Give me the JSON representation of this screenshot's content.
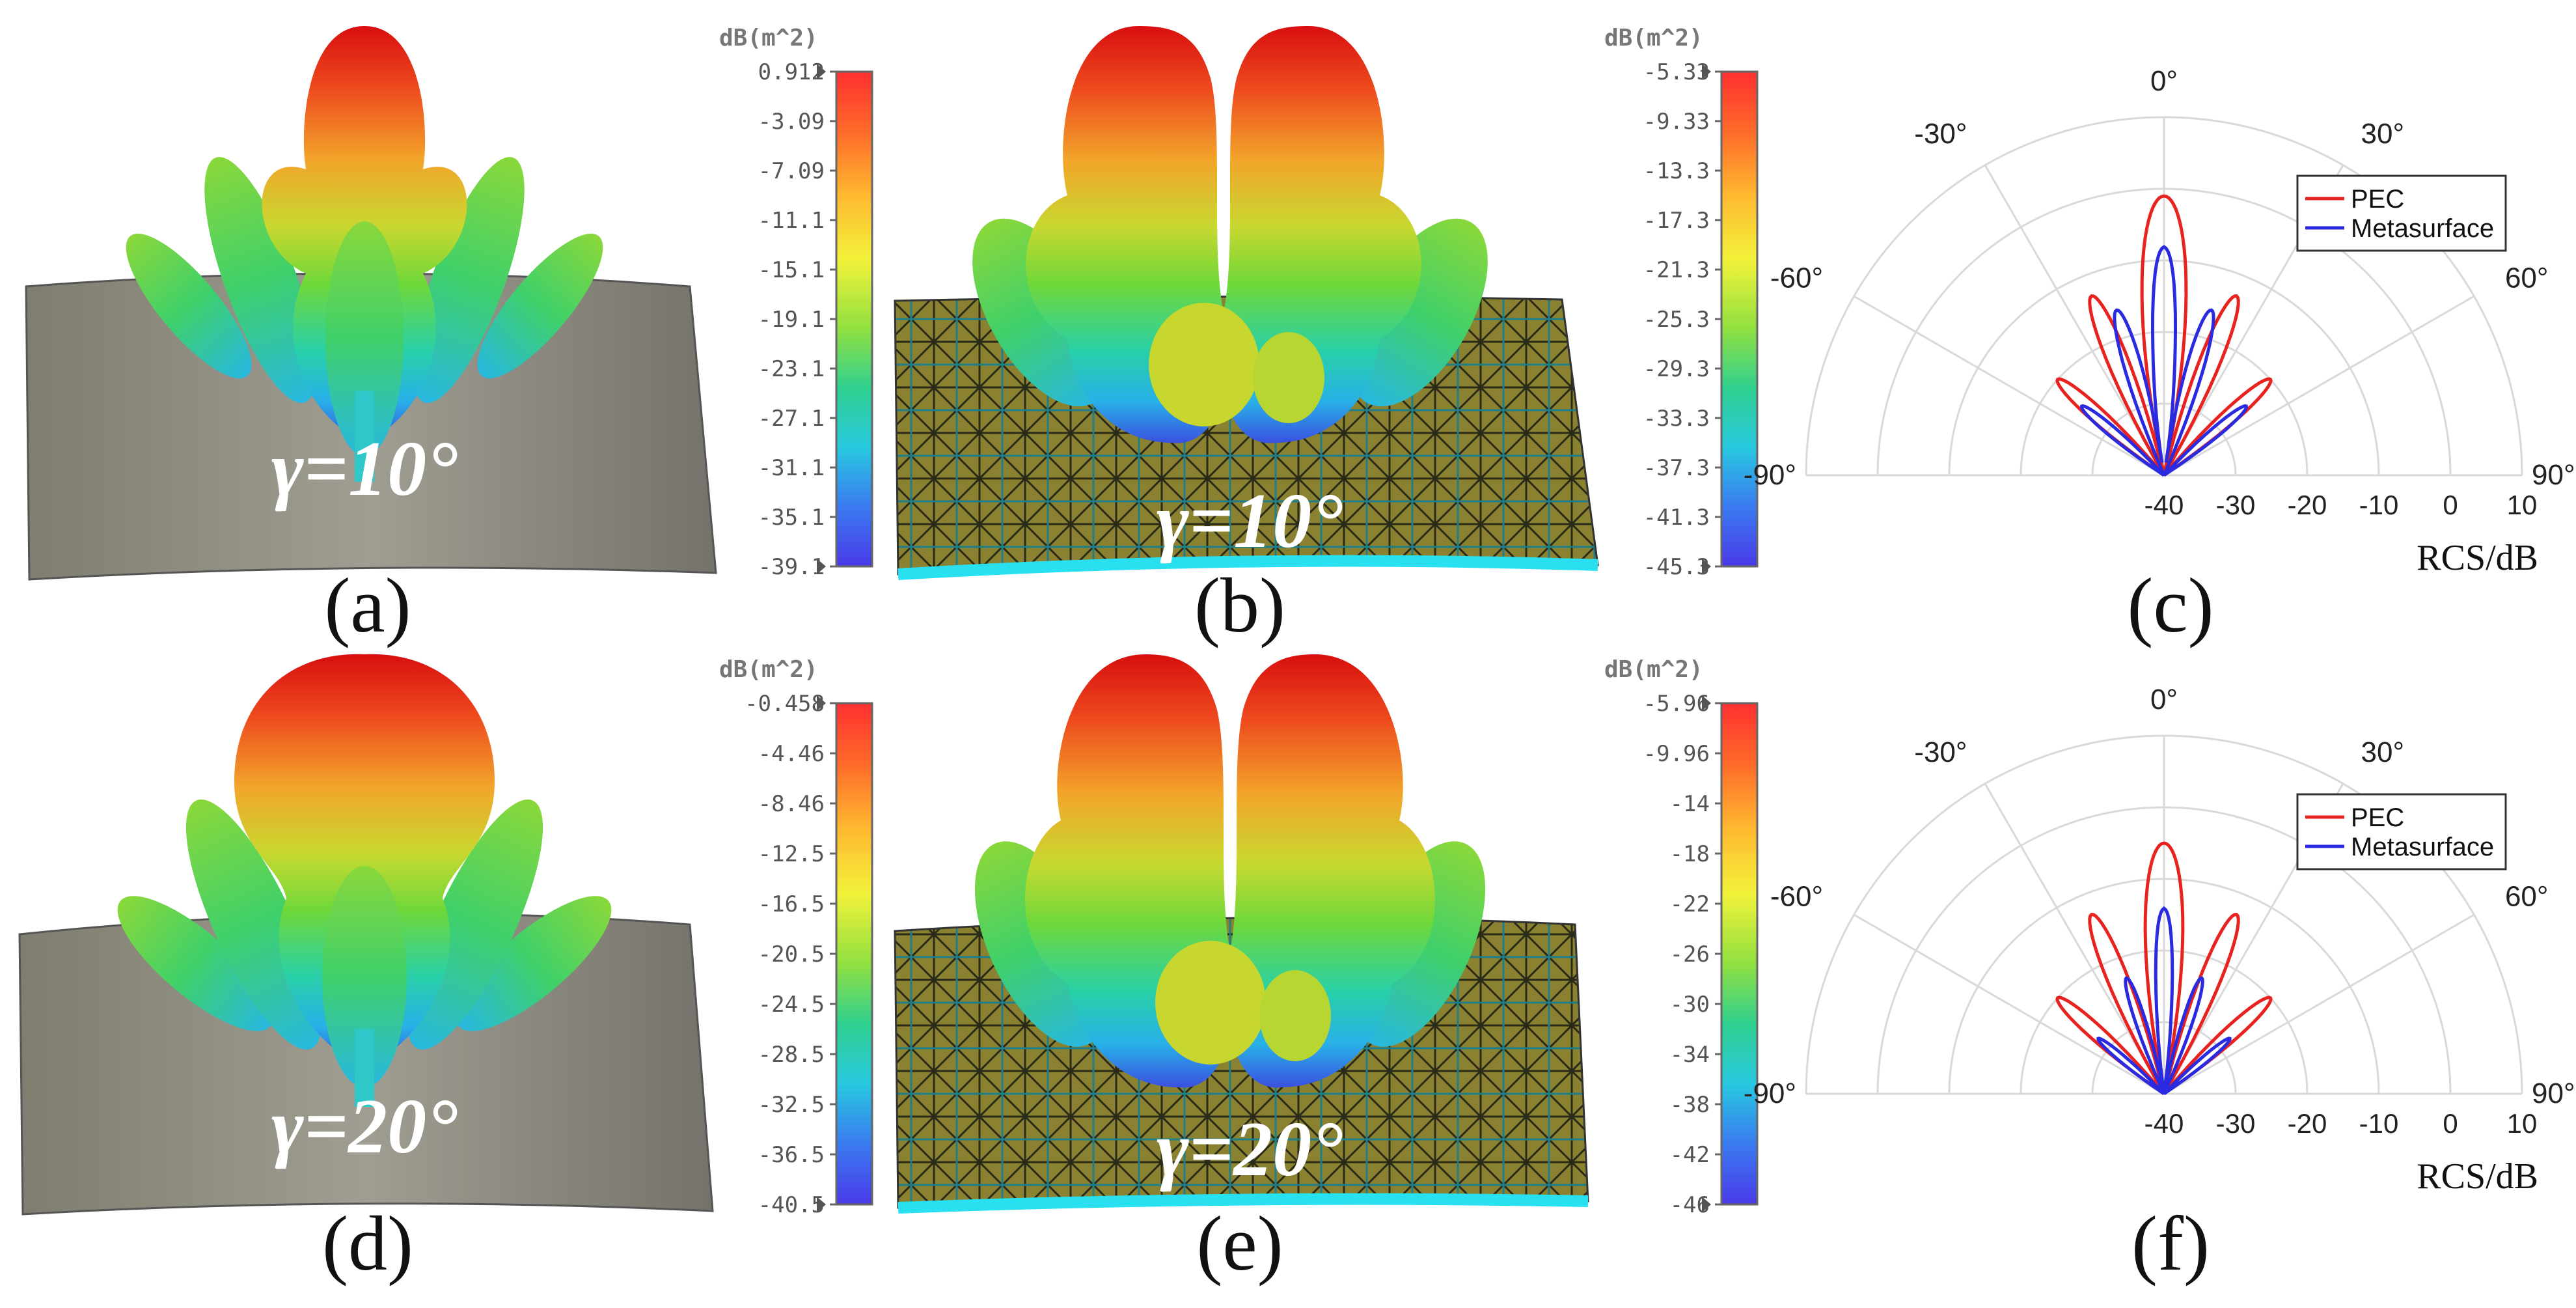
{
  "panel_labels": [
    "(a)",
    "(b)",
    "(c)",
    "(d)",
    "(e)",
    "(f)"
  ],
  "gamma_labels": {
    "a": "γ=10°",
    "b": "γ=10°",
    "d": "γ=20°",
    "e": "γ=20°"
  },
  "colorbars": [
    {
      "unit": "dB(m^2)",
      "ticks": [
        "0.912",
        "-3.09",
        "-7.09",
        "-11.1",
        "-15.1",
        "-19.1",
        "-23.1",
        "-27.1",
        "-31.1",
        "-35.1",
        "-39.1"
      ]
    },
    {
      "unit": "dB(m^2)",
      "ticks": [
        "-5.33",
        "-9.33",
        "-13.3",
        "-17.3",
        "-21.3",
        "-25.3",
        "-29.3",
        "-33.3",
        "-37.3",
        "-41.3",
        "-45.3"
      ]
    },
    {
      "unit": "dB(m^2)",
      "ticks": [
        "-0.458",
        "-4.46",
        "-8.46",
        "-12.5",
        "-16.5",
        "-20.5",
        "-24.5",
        "-28.5",
        "-32.5",
        "-36.5",
        "-40.5"
      ]
    },
    {
      "unit": "dB(m^2)",
      "ticks": [
        "-5.96",
        "-9.96",
        "-14",
        "-18",
        "-22",
        "-26",
        "-30",
        "-34",
        "-38",
        "-42",
        "-46"
      ]
    }
  ],
  "colors": {
    "pec": "#e8231f",
    "metasurface": "#2a2ae0",
    "grid": "#d9d9d9",
    "plate_gray": "#8e8c7e",
    "plate_mesh": "#b8ad3c",
    "plate_edge": "#28e0f0"
  },
  "chart_data": [
    {
      "type": "polar-line",
      "panel": "(c)",
      "xlabel": "RCS/dB",
      "r_ticks": [
        "-40",
        "-30",
        "-20",
        "-10",
        "0",
        "10"
      ],
      "angle_ticks": [
        "-90°",
        "-60°",
        "-30°",
        "0°",
        "30°",
        "60°",
        "90°"
      ],
      "rlim": [
        -40,
        10
      ],
      "theta_range_deg": [
        -90,
        90
      ],
      "legend": {
        "position": "top-right",
        "entries": [
          "PEC",
          "Metasurface"
        ]
      },
      "series": [
        {
          "name": "PEC",
          "main_peak_db": -1,
          "side_peaks_db": [
            -13,
            -20
          ],
          "side_peak_angles_deg": [
            22,
            48
          ]
        },
        {
          "name": "Metasurface",
          "main_peak_db": -8,
          "side_peaks_db": [
            -16,
            -25
          ],
          "side_peak_angles_deg": [
            16,
            50
          ],
          "null_angle_deg": 6
        }
      ]
    },
    {
      "type": "polar-line",
      "panel": "(f)",
      "xlabel": "RCS/dB",
      "r_ticks": [
        "-40",
        "-30",
        "-20",
        "-10",
        "0",
        "10"
      ],
      "angle_ticks": [
        "-90°",
        "-60°",
        "-30°",
        "0°",
        "30°",
        "60°",
        "90°"
      ],
      "rlim": [
        -40,
        10
      ],
      "theta_range_deg": [
        -90,
        90
      ],
      "legend": {
        "position": "top-right",
        "entries": [
          "PEC",
          "Metasurface"
        ]
      },
      "series": [
        {
          "name": "PEC",
          "main_peak_db": -5,
          "side_peaks_db": [
            -13,
            -20
          ],
          "side_peak_angles_deg": [
            22,
            48
          ]
        },
        {
          "name": "Metasurface",
          "main_peak_db": -14,
          "side_peaks_db": [
            -23,
            -28
          ],
          "side_peak_angles_deg": [
            18,
            50
          ],
          "null_angle_deg": 6
        }
      ]
    }
  ]
}
